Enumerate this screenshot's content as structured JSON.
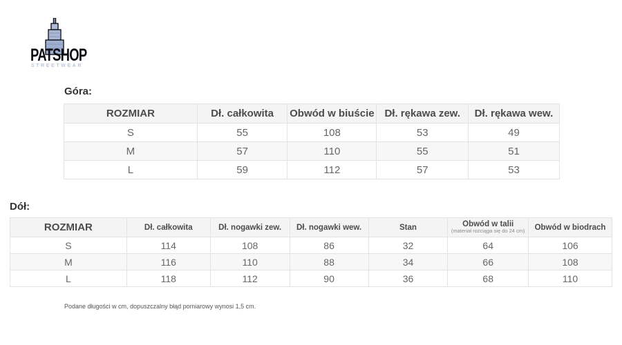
{
  "logo": {
    "title": "PATSHOP",
    "subtitle": "STREETWEAR",
    "colors": {
      "title_color": "#0d0d13",
      "subtitle_color": "#bcc5dc",
      "building_fill": "#a9b7d4",
      "building_outline": "#15151f"
    }
  },
  "sections": [
    {
      "heading": "Góra:"
    },
    {
      "heading": "Dół:"
    }
  ],
  "tables": [
    {
      "name": "gora",
      "columns": [
        {
          "label": "ROZMIAR",
          "sub": ""
        },
        {
          "label": "Dł. całkowita",
          "sub": ""
        },
        {
          "label": "Obwód w biuście",
          "sub": ""
        },
        {
          "label": "Dł. rękawa zew.",
          "sub": ""
        },
        {
          "label": "Dł. rękawa wew.",
          "sub": ""
        }
      ],
      "rows": [
        [
          "S",
          "55",
          "108",
          "53",
          "49"
        ],
        [
          "M",
          "57",
          "110",
          "55",
          "51"
        ],
        [
          "L",
          "59",
          "112",
          "57",
          "53"
        ]
      ]
    },
    {
      "name": "dol",
      "columns": [
        {
          "label": "ROZMIAR",
          "sub": ""
        },
        {
          "label": "Dł. całkowita",
          "sub": ""
        },
        {
          "label": "Dł. nogawki zew.",
          "sub": ""
        },
        {
          "label": "Dł. nogawki wew.",
          "sub": ""
        },
        {
          "label": "Stan",
          "sub": ""
        },
        {
          "label": "Obwód w talii",
          "sub": "(materiał rozciąga się do 24 cm)"
        },
        {
          "label": "Obwód w biodrach",
          "sub": ""
        }
      ],
      "rows": [
        [
          "S",
          "114",
          "108",
          "86",
          "32",
          "64",
          "106"
        ],
        [
          "M",
          "116",
          "110",
          "88",
          "34",
          "66",
          "108"
        ],
        [
          "L",
          "118",
          "112",
          "90",
          "36",
          "68",
          "110"
        ]
      ]
    }
  ],
  "footnote": "Podane długości w cm, dopuszczalny błąd pomiarowy wynosi 1,5 cm.",
  "units": "cm"
}
